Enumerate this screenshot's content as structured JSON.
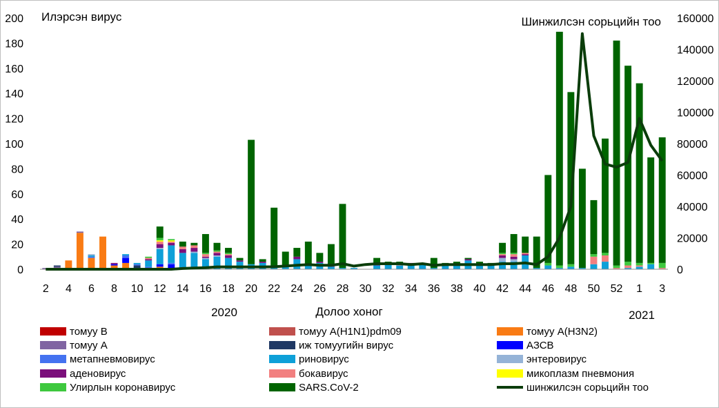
{
  "chart_data": {
    "type": "bar",
    "stacked": true,
    "title_left": "Илэрсэн вирус",
    "title_right": "Шинжилсэн сорьцийн тоо",
    "xlabel": "Долоо хоног",
    "year_labels": [
      "2020",
      "2021"
    ],
    "ylim": [
      0,
      200
    ],
    "y_ticks": [
      0,
      20,
      40,
      60,
      80,
      100,
      120,
      140,
      160,
      180,
      200
    ],
    "y2lim": [
      0,
      160000
    ],
    "y2_ticks": [
      "0",
      "20000",
      "40000",
      "60000",
      "80000",
      "100000",
      "120000",
      "140000",
      "160000"
    ],
    "categories": [
      2,
      3,
      4,
      5,
      6,
      7,
      8,
      9,
      10,
      11,
      12,
      13,
      14,
      15,
      16,
      17,
      18,
      19,
      20,
      21,
      22,
      23,
      24,
      25,
      26,
      27,
      28,
      29,
      30,
      31,
      32,
      33,
      34,
      35,
      36,
      37,
      38,
      39,
      40,
      41,
      42,
      43,
      44,
      45,
      46,
      47,
      48,
      49,
      50,
      51,
      52,
      53,
      1,
      2,
      3
    ],
    "x_tick_labels": [
      "2",
      "4",
      "6",
      "8",
      "10",
      "12",
      "14",
      "16",
      "18",
      "20",
      "22",
      "24",
      "26",
      "28",
      "30",
      "32",
      "34",
      "36",
      "38",
      "40",
      "42",
      "44",
      "46",
      "48",
      "50",
      "52",
      "1",
      "3"
    ],
    "series": [
      {
        "name": "томуу B",
        "color": "#c00000",
        "values": [
          0,
          0,
          0,
          0,
          0,
          0,
          0,
          0,
          0,
          0,
          0,
          0,
          0,
          0,
          0,
          0,
          0,
          0,
          0,
          0,
          0,
          0,
          0,
          0,
          0,
          0,
          0,
          0,
          0,
          0,
          0,
          0,
          0,
          0,
          0,
          0,
          0,
          0,
          0,
          0,
          0,
          0,
          0,
          0,
          0,
          0,
          0,
          0,
          0,
          0,
          0,
          0,
          0,
          0,
          0
        ]
      },
      {
        "name": "томуу A(H1N1)pdm09",
        "color": "#c0504d",
        "values": [
          0,
          0,
          0,
          0,
          0,
          0,
          0,
          0,
          0,
          0,
          0,
          0,
          0,
          0,
          0,
          0,
          0,
          0,
          0,
          0,
          0,
          0,
          0,
          0,
          0,
          0,
          0,
          0,
          0,
          0,
          0,
          0,
          0,
          0,
          0,
          0,
          0,
          0,
          0,
          0,
          0,
          0,
          0,
          0,
          0,
          0,
          0,
          0,
          0,
          0,
          0,
          0,
          0,
          0,
          0
        ]
      },
      {
        "name": "томуу A(H3N2)",
        "color": "#f97b14",
        "values": [
          0,
          1,
          7,
          29,
          9,
          26,
          3,
          5,
          0,
          0,
          2,
          0,
          0,
          0,
          0,
          0,
          0,
          0,
          0,
          0,
          0,
          0,
          0,
          0,
          0,
          0,
          0,
          0,
          0,
          0,
          0,
          0,
          0,
          0,
          0,
          0,
          0,
          0,
          0,
          0,
          0,
          0,
          0,
          0,
          0,
          0,
          0,
          0,
          0,
          0,
          0,
          0,
          0,
          0,
          0
        ]
      },
      {
        "name": "томуу A",
        "color": "#8064a2",
        "values": [
          1,
          1,
          0,
          1,
          0,
          0,
          0,
          0,
          0,
          0,
          0,
          0,
          0,
          0,
          0,
          0,
          0,
          0,
          0,
          0,
          0,
          0,
          0,
          0,
          0,
          0,
          0,
          0,
          0,
          0,
          0,
          0,
          0,
          0,
          0,
          0,
          0,
          0,
          0,
          0,
          0,
          0,
          0,
          0,
          0,
          0,
          0,
          0,
          0,
          0,
          0,
          0,
          0,
          0,
          0
        ]
      },
      {
        "name": "иж томуугийн вирус",
        "color": "#1f3864",
        "values": [
          0,
          1,
          0,
          0,
          0,
          0,
          0,
          0,
          3,
          0,
          0,
          0,
          0,
          0,
          0,
          0,
          0,
          0,
          0,
          0,
          0,
          0,
          0,
          0,
          0,
          0,
          0,
          0,
          0,
          0,
          0,
          0,
          0,
          0,
          0,
          0,
          0,
          0,
          0,
          0,
          0,
          0,
          0,
          0,
          0,
          0,
          0,
          0,
          0,
          0,
          0,
          0,
          0,
          0,
          0
        ]
      },
      {
        "name": "АЗСВ",
        "color": "#0000ff",
        "values": [
          0,
          0,
          0,
          0,
          0,
          0,
          1,
          4,
          0,
          1,
          2,
          4,
          0,
          0,
          0,
          0,
          0,
          0,
          0,
          0,
          0,
          0,
          0,
          0,
          0,
          0,
          0,
          0,
          0,
          0,
          0,
          0,
          0,
          0,
          0,
          0,
          0,
          0,
          0,
          0,
          0,
          0,
          0,
          0,
          0,
          0,
          0,
          0,
          0,
          0,
          0,
          0,
          0,
          0,
          0
        ]
      },
      {
        "name": "метапневмовирус",
        "color": "#4472f0",
        "values": [
          0,
          0,
          0,
          0,
          1,
          0,
          0,
          2,
          1,
          1,
          0,
          1,
          0,
          0,
          0,
          0,
          0,
          0,
          0,
          0,
          0,
          0,
          0,
          0,
          0,
          0,
          0,
          0,
          0,
          0,
          0,
          0,
          0,
          0,
          0,
          0,
          0,
          0,
          0,
          0,
          0,
          0,
          0,
          0,
          0,
          0,
          0,
          0,
          0,
          0,
          0,
          0,
          0,
          0,
          0
        ]
      },
      {
        "name": "риновирус",
        "color": "#0ea0d8",
        "values": [
          0,
          0,
          0,
          0,
          1,
          0,
          0,
          1,
          1,
          5,
          12,
          14,
          13,
          13,
          8,
          10,
          9,
          6,
          4,
          5,
          1,
          2,
          8,
          3,
          5,
          2,
          1,
          1,
          0,
          3,
          5,
          3,
          4,
          5,
          1,
          4,
          4,
          7,
          4,
          3,
          6,
          6,
          11,
          1,
          3,
          1,
          2,
          1,
          4,
          6,
          0,
          1,
          2,
          4,
          0
        ]
      },
      {
        "name": "энтеровирус",
        "color": "#95b3d7",
        "values": [
          0,
          0,
          0,
          0,
          1,
          0,
          0,
          0,
          0,
          0,
          1,
          0,
          0,
          1,
          1,
          1,
          0,
          0,
          0,
          0,
          0,
          0,
          0,
          0,
          0,
          0,
          0,
          0,
          0,
          0,
          0,
          0,
          0,
          0,
          0,
          0,
          0,
          0,
          0,
          0,
          3,
          2,
          0,
          0,
          0,
          0,
          0,
          0,
          0,
          0,
          0,
          0,
          0,
          0,
          0
        ]
      },
      {
        "name": "аденовирус",
        "color": "#7b0f7b",
        "values": [
          0,
          0,
          0,
          0,
          0,
          0,
          1,
          0,
          0,
          1,
          3,
          2,
          3,
          3,
          1,
          2,
          2,
          1,
          0,
          1,
          0,
          0,
          2,
          1,
          1,
          1,
          0,
          0,
          0,
          1,
          0,
          0,
          1,
          0,
          0,
          0,
          0,
          1,
          0,
          1,
          2,
          2,
          1,
          0,
          0,
          0,
          0,
          0,
          0,
          0,
          0,
          0,
          0,
          0,
          0
        ]
      },
      {
        "name": "бокавирус",
        "color": "#f28080",
        "values": [
          0,
          0,
          0,
          0,
          0,
          0,
          0,
          0,
          0,
          1,
          2,
          1,
          2,
          2,
          2,
          1,
          1,
          0,
          0,
          0,
          0,
          0,
          0,
          0,
          0,
          0,
          0,
          0,
          0,
          0,
          0,
          1,
          0,
          0,
          0,
          0,
          0,
          0,
          0,
          0,
          1,
          2,
          1,
          0,
          0,
          0,
          0,
          0,
          6,
          5,
          1,
          2,
          1,
          0,
          1
        ]
      },
      {
        "name": "микоплазм пневмония",
        "color": "#ffff00",
        "values": [
          0,
          0,
          0,
          0,
          0,
          0,
          0,
          0,
          0,
          0,
          1,
          1,
          0,
          0,
          0,
          0,
          0,
          0,
          0,
          0,
          0,
          0,
          0,
          0,
          0,
          0,
          0,
          0,
          0,
          0,
          0,
          0,
          0,
          0,
          0,
          0,
          0,
          0,
          0,
          0,
          0,
          0,
          0,
          0,
          0,
          0,
          0,
          0,
          0,
          0,
          0,
          0,
          0,
          0,
          0
        ]
      },
      {
        "name": "Улирлын коронавирус",
        "color": "#3ec83e",
        "values": [
          0,
          0,
          0,
          0,
          0,
          0,
          0,
          0,
          0,
          1,
          2,
          1,
          0,
          0,
          1,
          1,
          1,
          0,
          0,
          0,
          0,
          0,
          0,
          0,
          0,
          0,
          0,
          0,
          0,
          0,
          0,
          0,
          0,
          0,
          0,
          0,
          0,
          0,
          0,
          0,
          1,
          1,
          0,
          0,
          2,
          2,
          2,
          0,
          2,
          2,
          2,
          3,
          2,
          1,
          4
        ]
      },
      {
        "name": "SARS.CoV-2",
        "color": "#006400",
        "values": [
          0,
          0,
          0,
          0,
          0,
          0,
          0,
          0,
          0,
          0,
          9,
          0,
          4,
          2,
          15,
          6,
          4,
          2,
          99,
          2,
          48,
          12,
          7,
          18,
          7,
          17,
          51,
          0,
          0,
          5,
          1,
          2,
          0,
          0,
          8,
          1,
          2,
          1,
          2,
          1,
          8,
          15,
          13,
          25,
          70,
          186,
          137,
          79,
          43,
          91,
          179,
          156,
          143,
          84,
          100
        ]
      },
      {
        "name": "шинжилсэн сорьцийн тоо",
        "color": "#0b3d0b",
        "axis": "right",
        "line": true,
        "values": [
          0,
          0,
          0,
          0,
          0,
          0,
          0,
          0,
          0,
          0,
          0,
          0,
          500,
          800,
          1000,
          1500,
          1500,
          1500,
          1500,
          1500,
          1600,
          2000,
          2500,
          3000,
          2500,
          2500,
          3500,
          2000,
          3000,
          3500,
          3500,
          3500,
          3000,
          3500,
          2500,
          3000,
          3000,
          3000,
          3000,
          3000,
          3500,
          3500,
          4000,
          3000,
          8000,
          20000,
          40000,
          150000,
          85000,
          67000,
          65000,
          68000,
          96000,
          79000,
          69000
        ]
      }
    ]
  }
}
